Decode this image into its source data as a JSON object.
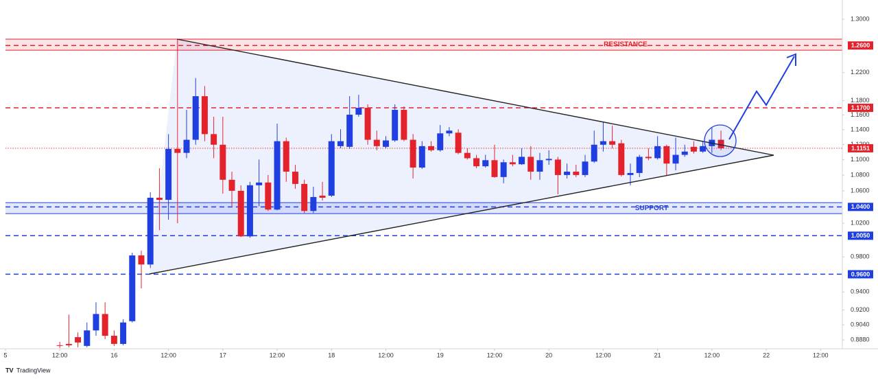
{
  "chart_data": {
    "type": "candlestick",
    "log_scale": true,
    "grid": false,
    "up_color": "#1f3fe0",
    "down_color": "#e3222c",
    "x": [
      6,
      7,
      8,
      9,
      10,
      11,
      12,
      13,
      14,
      15,
      16,
      17,
      18,
      19,
      20,
      21,
      22,
      23,
      24,
      25,
      26,
      27,
      28,
      29,
      30,
      31,
      32,
      33,
      34,
      35,
      36,
      37,
      38,
      39,
      40,
      41,
      42,
      43,
      44,
      45,
      46,
      47,
      48,
      49,
      50,
      51,
      52,
      53,
      54,
      55,
      56,
      57,
      58,
      59,
      60,
      61,
      62,
      63,
      64,
      65,
      66,
      67,
      68,
      69,
      70,
      71,
      72,
      73,
      74,
      75,
      76,
      77,
      78,
      79
    ],
    "open": [
      0.8823,
      0.8837,
      0.8908,
      0.8816,
      0.898,
      0.9157,
      0.8923,
      0.8837,
      0.9079,
      0.9817,
      0.9712,
      1.0514,
      1.0488,
      1.1142,
      1.109,
      1.1264,
      1.1863,
      1.134,
      1.1198,
      1.0741,
      1.0601,
      1.0042,
      1.0671,
      1.0706,
      1.0367,
      1.1245,
      1.0845,
      1.0688,
      1.035,
      1.054,
      1.054,
      1.1179,
      1.117,
      1.1605,
      1.17,
      1.1264,
      1.117,
      1.1255,
      1.1672,
      1.1264,
      1.0898,
      1.1179,
      1.1125,
      1.135,
      1.1359,
      1.109,
      1.102,
      1.0915,
      1.0994,
      1.0776,
      1.0967,
      1.0941,
      1.1038,
      1.0845,
      1.0994,
      1.1002,
      1.0802,
      1.0845,
      1.0802,
      1.0976,
      1.1198,
      1.1245,
      1.1217,
      1.0802,
      1.0828,
      1.1038,
      1.102,
      1.1179,
      1.095,
      1.1064,
      1.117,
      1.1107,
      1.1179,
      1.1264
    ],
    "high": [
      0.8859,
      0.915,
      0.8958,
      0.9065,
      0.9285,
      0.9285,
      0.898,
      0.91,
      0.9849,
      0.9873,
      1.0584,
      1.0889,
      1.134,
      1.2695,
      1.1672,
      1.2122,
      1.2007,
      1.1577,
      1.1577,
      1.0845,
      1.0671,
      1.0715,
      1.1002,
      1.0802,
      1.1482,
      1.1293,
      1.0933,
      1.0741,
      1.0653,
      1.0715,
      1.134,
      1.1406,
      1.1863,
      1.1882,
      1.1748,
      1.1387,
      1.1312,
      1.1748,
      1.1719,
      1.134,
      1.1245,
      1.1245,
      1.1463,
      1.1435,
      1.1406,
      1.1151,
      1.1064,
      1.1064,
      1.1198,
      1.1002,
      1.1064,
      1.1151,
      1.1179,
      1.109,
      1.1125,
      1.1038,
      1.095,
      1.0933,
      1.1064,
      1.1387,
      1.1501,
      1.1454,
      1.1264,
      1.095,
      1.1064,
      1.1151,
      1.1312,
      1.1198,
      1.1293,
      1.1198,
      1.1245,
      1.1245,
      1.1435,
      1.1387
    ],
    "low": [
      0.8795,
      0.8802,
      0.8802,
      0.8802,
      0.8923,
      0.8887,
      0.8816,
      0.8823,
      0.9065,
      0.9439,
      0.9672,
      1.0117,
      1.0242,
      1.02,
      1.102,
      1.1198,
      1.1245,
      1.102,
      1.0566,
      1.0409,
      1.0034,
      1.0026,
      1.0409,
      1.035,
      1.0358,
      1.0715,
      1.0627,
      1.0325,
      1.0325,
      1.0479,
      1.0523,
      1.1151,
      1.1142,
      1.1577,
      1.1198,
      1.1125,
      1.1151,
      1.1236,
      1.1245,
      1.0758,
      1.088,
      1.1107,
      1.1107,
      1.1312,
      1.1072,
      1.1002,
      1.0889,
      1.0898,
      1.0767,
      1.0697,
      1.0915,
      1.0933,
      1.0741,
      1.0741,
      1.0933,
      1.0557,
      1.0758,
      1.0776,
      1.0776,
      1.0959,
      1.1107,
      1.1151,
      1.0784,
      1.0671,
      1.0776,
      1.0994,
      1.1002,
      1.0793,
      1.0863,
      1.1038,
      1.1081,
      1.109,
      1.109,
      1.1125
    ],
    "close": [
      0.8816,
      0.8823,
      0.8852,
      0.898,
      0.9157,
      0.8923,
      0.8837,
      0.9065,
      0.9817,
      0.9712,
      1.0514,
      1.0488,
      1.1142,
      1.109,
      1.1264,
      1.1863,
      1.134,
      1.1198,
      1.0741,
      1.0601,
      1.0042,
      1.0671,
      1.0706,
      1.0367,
      1.1245,
      1.0845,
      1.0688,
      1.035,
      1.0523,
      1.0514,
      1.1245,
      1.1245,
      1.1605,
      1.17,
      1.1264,
      1.1179,
      1.1255,
      1.1672,
      1.1264,
      1.0898,
      1.1179,
      1.1125,
      1.135,
      1.1387,
      1.109,
      1.102,
      1.0915,
      1.0994,
      1.0776,
      1.0967,
      1.0941,
      1.1038,
      1.0845,
      1.0994,
      1.1011,
      1.0802,
      1.0845,
      1.0802,
      1.0976,
      1.1198,
      1.1245,
      1.1198,
      1.0802,
      1.0828,
      1.1038,
      1.102,
      1.1179,
      1.095,
      1.1064,
      1.1107,
      1.1107,
      1.1179,
      1.1264,
      1.1151
    ],
    "xlim": [
      -0.6,
      92.4
    ],
    "ylim": [
      0.8786,
      1.33
    ],
    "xticks": [
      {
        "value": 0,
        "label": "5"
      },
      {
        "value": 6,
        "label": "12:00"
      },
      {
        "value": 12,
        "label": "16"
      },
      {
        "value": 18,
        "label": "12:00"
      },
      {
        "value": 24,
        "label": "17"
      },
      {
        "value": 30,
        "label": "12:00"
      },
      {
        "value": 36,
        "label": "18"
      },
      {
        "value": 42,
        "label": "12:00"
      },
      {
        "value": 48,
        "label": "19"
      },
      {
        "value": 54,
        "label": "12:00"
      },
      {
        "value": 60,
        "label": "20"
      },
      {
        "value": 66,
        "label": "12:00"
      },
      {
        "value": 72,
        "label": "21"
      },
      {
        "value": 78,
        "label": "12:00"
      },
      {
        "value": 84,
        "label": "22"
      },
      {
        "value": 90,
        "label": "12:00"
      }
    ],
    "yticks": [
      {
        "value": 1.3,
        "label": "1.3000"
      },
      {
        "value": 1.22,
        "label": "1.2200"
      },
      {
        "value": 1.18,
        "label": "1.1800"
      },
      {
        "value": 1.16,
        "label": "1.1600"
      },
      {
        "value": 1.14,
        "label": "1.1400"
      },
      {
        "value": 1.12,
        "label": "1.1200"
      },
      {
        "value": 1.1,
        "label": "1.1000"
      },
      {
        "value": 1.08,
        "label": "1.0800"
      },
      {
        "value": 1.06,
        "label": "1.0600"
      },
      {
        "value": 1.02,
        "label": "1.0200"
      },
      {
        "value": 0.98,
        "label": "0.9800"
      },
      {
        "value": 0.94,
        "label": "0.9400"
      },
      {
        "value": 0.92,
        "label": "0.9200"
      },
      {
        "value": 0.904,
        "label": "0.9040"
      },
      {
        "value": 0.888,
        "label": "0.8880"
      }
    ],
    "levels": [
      {
        "value": 1.26,
        "label": "1.2600",
        "color": "#e3222c",
        "style": "dashed"
      },
      {
        "value": 1.17,
        "label": "1.1700",
        "color": "#e3222c",
        "style": "dashed"
      },
      {
        "value": 1.1151,
        "label": "1.1151",
        "color": "#e3222c",
        "style": "dotted"
      },
      {
        "value": 1.04,
        "label": "1.0400",
        "color": "#1f3fe0",
        "style": "dashed"
      },
      {
        "value": 1.005,
        "label": "1.0050",
        "color": "#1f3fe0",
        "style": "dashed"
      },
      {
        "value": 0.96,
        "label": "0.9600",
        "color": "#1f3fe0",
        "style": "dashed"
      }
    ],
    "zones": [
      {
        "label": "RESISTANCE",
        "range": [
          1.253,
          1.2695
        ],
        "color": "#e3222c"
      },
      {
        "label": "SUPPORT",
        "range": [
          1.0317,
          1.0453
        ],
        "color": "#1f3fe0"
      }
    ],
    "watermark": "TradingView"
  }
}
